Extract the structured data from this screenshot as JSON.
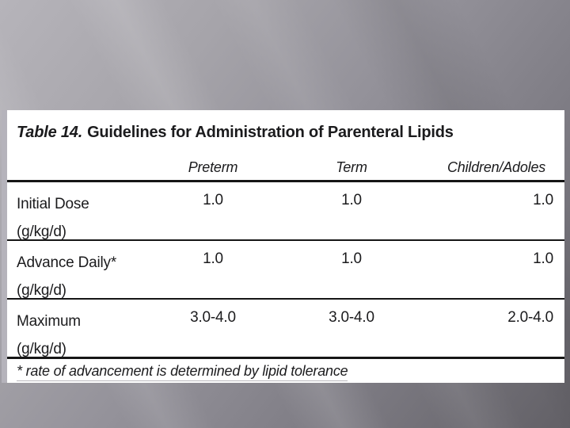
{
  "slide": {
    "table": {
      "title": {
        "prefix": "Table 14.",
        "text": "Guidelines for Administration of Parenteral Lipids"
      },
      "columns": [
        "Preterm",
        "Term",
        "Children/Adoles"
      ],
      "rows": [
        {
          "label": "Initial Dose",
          "unit": "(g/kg/d)",
          "values": [
            "1.0",
            "1.0",
            "1.0"
          ]
        },
        {
          "label": "Advance Daily*",
          "unit": "(g/kg/d)",
          "values": [
            "1.0",
            "1.0",
            "1.0"
          ]
        },
        {
          "label": "Maximum",
          "unit": "(g/kg/d)",
          "values": [
            "3.0-4.0",
            "3.0-4.0",
            "2.0-4.0"
          ]
        }
      ],
      "footnote": "* rate of advancement is determined by lipid tolerance"
    },
    "colors": {
      "background_top": "#b6b4ba",
      "background_bottom": "#626066",
      "panel": "#ffffff",
      "text": "#1b1b1d",
      "rule": "#161616",
      "scan_strip": "#b5b3bb"
    }
  },
  "chart_data": {
    "type": "table",
    "title": "Table 14. Guidelines for Administration of Parenteral Lipids",
    "columns": [
      "",
      "Preterm",
      "Term",
      "Children/Adoles"
    ],
    "rows": [
      [
        "Initial Dose (g/kg/d)",
        "1.0",
        "1.0",
        "1.0"
      ],
      [
        "Advance Daily* (g/kg/d)",
        "1.0",
        "1.0",
        "1.0"
      ],
      [
        "Maximum (g/kg/d)",
        "3.0-4.0",
        "3.0-4.0",
        "2.0-4.0"
      ]
    ],
    "footnote": "* rate of advancement is determined by lipid tolerance"
  }
}
